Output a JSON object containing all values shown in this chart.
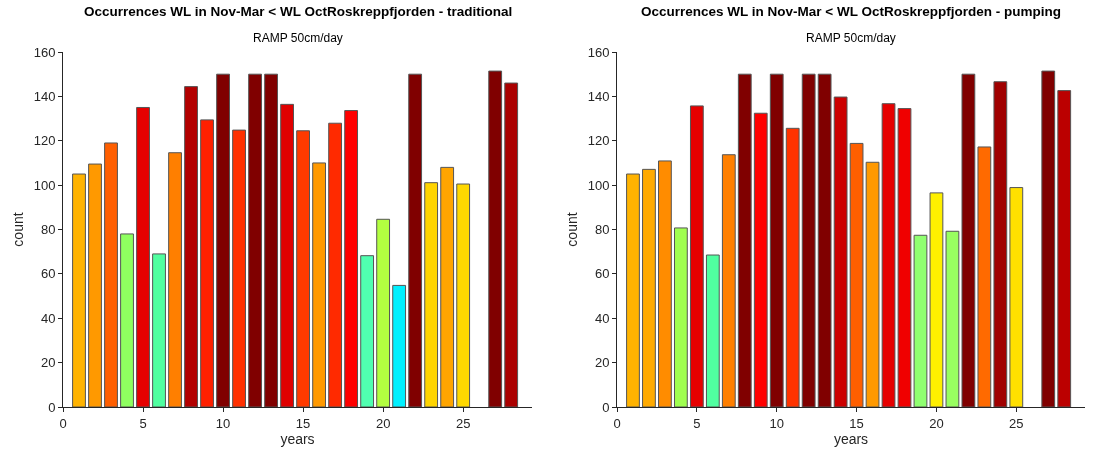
{
  "chart_data": [
    {
      "type": "bar",
      "title": "Occurrences WL in Nov-Mar < WL OctRoskreppfjorden - traditional",
      "subtitle": "RAMP 50cm/day",
      "xlabel": "years",
      "ylabel": "count",
      "x": [
        1,
        2,
        3,
        4,
        5,
        6,
        7,
        8,
        9,
        10,
        11,
        12,
        13,
        14,
        15,
        16,
        17,
        18,
        19,
        20,
        21,
        22,
        23,
        24,
        25,
        26,
        27,
        28
      ],
      "values": [
        105,
        109.5,
        119,
        78,
        135,
        69,
        114.6,
        144.4,
        129.4,
        150,
        124.8,
        150,
        150,
        136.4,
        124.5,
        110,
        127.9,
        133.6,
        68.2,
        84.6,
        54.8,
        150,
        101.1,
        108,
        100.5,
        null,
        151.4,
        146
      ],
      "colors": [
        "#ffb300",
        "#ff9900",
        "#ff5f00",
        "#8fff60",
        "#e60000",
        "#50ffa0",
        "#ff7f00",
        "#b30000",
        "#ff2000",
        "#800000",
        "#ff3000",
        "#800000",
        "#800000",
        "#e00000",
        "#ff3a00",
        "#ff9900",
        "#ff2a00",
        "#ff0000",
        "#50ffb0",
        "#b3ff40",
        "#00f0ff",
        "#800000",
        "#ffd400",
        "#ffa500",
        "#ffd800",
        "#ffffff",
        "#800000",
        "#aa0000"
      ],
      "xlim": [
        0,
        29.3
      ],
      "xticks": [
        0,
        5,
        10,
        15,
        20,
        25
      ],
      "ylim": [
        0,
        160
      ],
      "yticks": [
        0,
        20,
        40,
        60,
        80,
        100,
        120,
        140,
        160
      ],
      "grid": false,
      "legend": false
    },
    {
      "type": "bar",
      "title": "Occurrences WL in Nov-Mar < WL OctRoskreppfjorden - pumping",
      "subtitle": "RAMP 50cm/day",
      "xlabel": "years",
      "ylabel": "count",
      "x": [
        1,
        2,
        3,
        4,
        5,
        6,
        7,
        8,
        9,
        10,
        11,
        12,
        13,
        14,
        15,
        16,
        17,
        18,
        19,
        20,
        21,
        22,
        23,
        24,
        25,
        26,
        27,
        28
      ],
      "values": [
        105,
        107.1,
        110.9,
        80.7,
        135.7,
        68.5,
        113.7,
        150,
        132.4,
        150,
        125.6,
        150,
        150,
        139.7,
        118.8,
        110.3,
        136.7,
        134.5,
        77.4,
        96.5,
        79.2,
        150,
        117.2,
        146.6,
        98.9,
        null,
        151.4,
        142.6
      ],
      "colors": [
        "#ffb300",
        "#ffaa00",
        "#ff8c00",
        "#a0ff50",
        "#e60000",
        "#50ffa0",
        "#ff7f00",
        "#800000",
        "#ff0000",
        "#800000",
        "#ff3300",
        "#800000",
        "#800000",
        "#cc0000",
        "#ff5f00",
        "#ff9900",
        "#e60000",
        "#f00000",
        "#90ff70",
        "#fff000",
        "#99ff60",
        "#800000",
        "#ff6a00",
        "#a00000",
        "#ffe000",
        "#ffffff",
        "#800000",
        "#bb0000"
      ],
      "xlim": [
        0,
        29.3
      ],
      "xticks": [
        0,
        5,
        10,
        15,
        20,
        25
      ],
      "ylim": [
        0,
        160
      ],
      "yticks": [
        0,
        20,
        40,
        60,
        80,
        100,
        120,
        140,
        160
      ],
      "grid": false,
      "legend": false
    }
  ]
}
